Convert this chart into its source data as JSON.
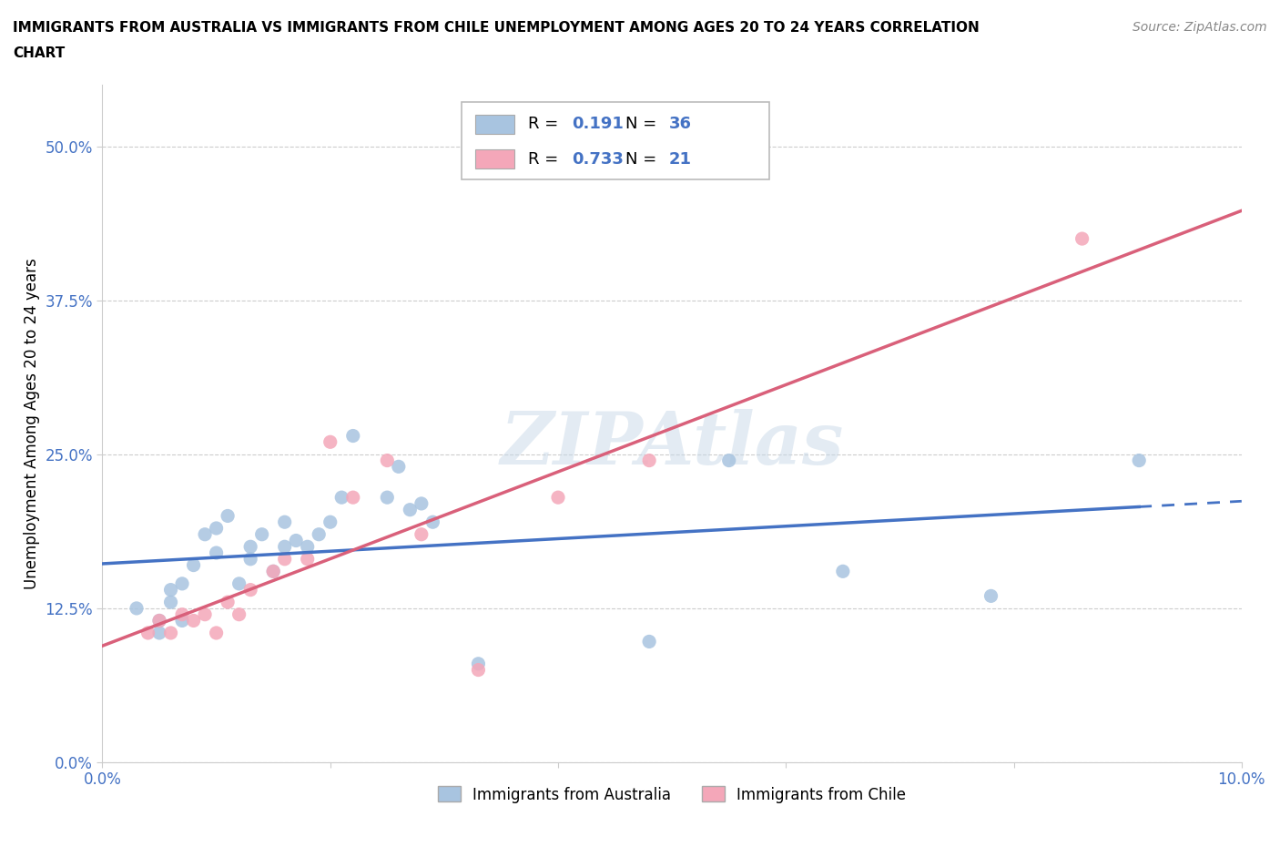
{
  "title_line1": "IMMIGRANTS FROM AUSTRALIA VS IMMIGRANTS FROM CHILE UNEMPLOYMENT AMONG AGES 20 TO 24 YEARS CORRELATION",
  "title_line2": "CHART",
  "source": "Source: ZipAtlas.com",
  "ylabel": "Unemployment Among Ages 20 to 24 years",
  "xlim": [
    0.0,
    0.1
  ],
  "ylim": [
    0.0,
    0.55
  ],
  "yticks": [
    0.0,
    0.125,
    0.25,
    0.375,
    0.5
  ],
  "ytick_labels": [
    "0.0%",
    "12.5%",
    "25.0%",
    "37.5%",
    "50.0%"
  ],
  "xtick_positions": [
    0.0,
    0.02,
    0.04,
    0.06,
    0.08,
    0.1
  ],
  "xtick_labels": [
    "0.0%",
    "",
    "",
    "",
    "",
    "10.0%"
  ],
  "australia_color": "#a8c4e0",
  "chile_color": "#f4a7b9",
  "australia_line_color": "#4472c4",
  "chile_line_color": "#d9607a",
  "tick_color": "#4472c4",
  "australia_R": 0.191,
  "australia_N": 36,
  "chile_R": 0.733,
  "chile_N": 21,
  "watermark_text": "ZIPAtlas",
  "watermark_color": "#c8d8e8",
  "australia_x": [
    0.003,
    0.005,
    0.005,
    0.006,
    0.006,
    0.007,
    0.007,
    0.008,
    0.009,
    0.01,
    0.01,
    0.011,
    0.012,
    0.013,
    0.013,
    0.014,
    0.015,
    0.016,
    0.016,
    0.017,
    0.018,
    0.019,
    0.02,
    0.021,
    0.022,
    0.025,
    0.026,
    0.027,
    0.028,
    0.029,
    0.033,
    0.048,
    0.055,
    0.065,
    0.078,
    0.091
  ],
  "australia_y": [
    0.125,
    0.105,
    0.115,
    0.13,
    0.14,
    0.115,
    0.145,
    0.16,
    0.185,
    0.17,
    0.19,
    0.2,
    0.145,
    0.175,
    0.165,
    0.185,
    0.155,
    0.175,
    0.195,
    0.18,
    0.175,
    0.185,
    0.195,
    0.215,
    0.265,
    0.215,
    0.24,
    0.205,
    0.21,
    0.195,
    0.08,
    0.098,
    0.245,
    0.155,
    0.135,
    0.245
  ],
  "chile_x": [
    0.004,
    0.005,
    0.006,
    0.007,
    0.008,
    0.009,
    0.01,
    0.011,
    0.012,
    0.013,
    0.015,
    0.016,
    0.018,
    0.02,
    0.022,
    0.025,
    0.028,
    0.033,
    0.04,
    0.048,
    0.086
  ],
  "chile_y": [
    0.105,
    0.115,
    0.105,
    0.12,
    0.115,
    0.12,
    0.105,
    0.13,
    0.12,
    0.14,
    0.155,
    0.165,
    0.165,
    0.26,
    0.215,
    0.245,
    0.185,
    0.075,
    0.215,
    0.245,
    0.425
  ],
  "legend_label_australia": "Immigrants from Australia",
  "legend_label_chile": "Immigrants from Chile",
  "marker_size": 120
}
